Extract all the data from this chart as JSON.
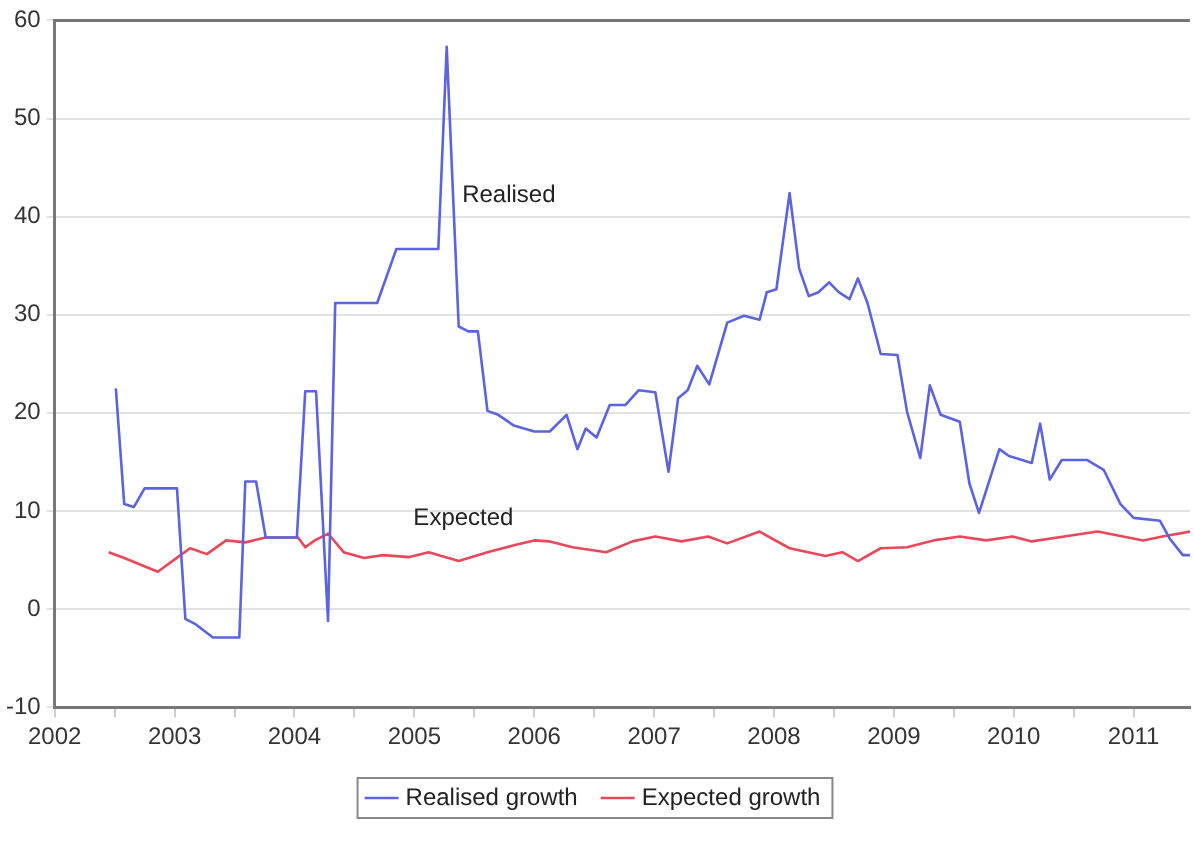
{
  "chart_data": {
    "type": "line",
    "xlim": [
      2002.5,
      2011.97
    ],
    "ylim": [
      -10,
      60
    ],
    "yticks": [
      -10,
      0,
      10,
      20,
      30,
      40,
      50,
      60
    ],
    "xticks": [
      {
        "value": 2002.5,
        "label": "2002"
      },
      {
        "value": 2003,
        "label": null
      },
      {
        "value": 2003.5,
        "label": "2003"
      },
      {
        "value": 2004,
        "label": null
      },
      {
        "value": 2004.5,
        "label": "2004"
      },
      {
        "value": 2005,
        "label": null
      },
      {
        "value": 2005.5,
        "label": "2005"
      },
      {
        "value": 2006,
        "label": null
      },
      {
        "value": 2006.5,
        "label": "2006"
      },
      {
        "value": 2007,
        "label": null
      },
      {
        "value": 2007.5,
        "label": "2007"
      },
      {
        "value": 2008,
        "label": null
      },
      {
        "value": 2008.5,
        "label": "2008"
      },
      {
        "value": 2009,
        "label": null
      },
      {
        "value": 2009.5,
        "label": "2009"
      },
      {
        "value": 2010,
        "label": null
      },
      {
        "value": 2010.5,
        "label": "2010"
      },
      {
        "value": 2011,
        "label": null
      },
      {
        "value": 2011.5,
        "label": "2011"
      }
    ],
    "grid": "y",
    "legend": "bottom",
    "marker": "none",
    "line_style": "solid",
    "annotations": [
      "Realised",
      "Expected"
    ],
    "series": [
      {
        "name": "Realised growth",
        "color": "#5b63e0",
        "x": [
          2003.01,
          2003.08,
          2003.16,
          2003.25,
          2003.52,
          2003.59,
          2003.67,
          2003.82,
          2004.04,
          2004.09,
          2004.18,
          2004.26,
          2004.52,
          2004.59,
          2004.68,
          2004.78,
          2004.84,
          2005.19,
          2005.35,
          2005.7,
          2005.77,
          2005.87,
          2005.95,
          2006.03,
          2006.11,
          2006.2,
          2006.33,
          2006.5,
          2006.63,
          2006.77,
          2006.86,
          2006.93,
          2007.02,
          2007.13,
          2007.26,
          2007.37,
          2007.51,
          2007.62,
          2007.7,
          2007.78,
          2007.86,
          2007.96,
          2008.11,
          2008.25,
          2008.38,
          2008.44,
          2008.52,
          2008.63,
          2008.71,
          2008.79,
          2008.87,
          2008.96,
          2009.04,
          2009.13,
          2009.2,
          2009.28,
          2009.39,
          2009.53,
          2009.61,
          2009.72,
          2009.8,
          2009.89,
          2010.05,
          2010.13,
          2010.21,
          2010.38,
          2010.46,
          2010.65,
          2010.72,
          2010.8,
          2010.9,
          2011.11,
          2011.25,
          2011.39,
          2011.5,
          2011.72,
          2011.8,
          2011.91,
          2011.97
        ],
        "values": [
          22.5,
          10.7,
          10.4,
          12.3,
          12.3,
          -1,
          -1.5,
          -2.9,
          -2.9,
          13,
          13,
          7.3,
          7.3,
          22.2,
          22.2,
          -1.2,
          31.2,
          31.2,
          36.7,
          36.7,
          57.3,
          28.8,
          28.3,
          28.3,
          20.2,
          19.8,
          18.7,
          18.1,
          18.1,
          19.8,
          16.3,
          18.4,
          17.5,
          20.8,
          20.8,
          22.3,
          22.1,
          14,
          21.5,
          22.3,
          24.8,
          22.9,
          29.2,
          29.9,
          29.5,
          32.3,
          32.6,
          42.4,
          34.7,
          31.9,
          32.3,
          33.3,
          32.3,
          31.6,
          33.7,
          31.2,
          26,
          25.9,
          20.1,
          15.4,
          22.8,
          19.8,
          19.1,
          12.8,
          9.8,
          16.3,
          15.6,
          14.9,
          18.9,
          13.2,
          15.2,
          15.2,
          14.2,
          10.7,
          9.3,
          9,
          7.2,
          5.5,
          5.5
        ]
      },
      {
        "name": "Expected growth",
        "color": "#e8485a",
        "x": [
          2002.95,
          2003.08,
          2003.36,
          2003.55,
          2003.63,
          2003.77,
          2003.93,
          2004.09,
          2004.26,
          2004.53,
          2004.59,
          2004.67,
          2004.78,
          2004.91,
          2005.08,
          2005.24,
          2005.46,
          2005.62,
          2005.87,
          2006.11,
          2006.33,
          2006.5,
          2006.63,
          2006.82,
          2007.1,
          2007.32,
          2007.51,
          2007.73,
          2007.95,
          2008.11,
          2008.38,
          2008.63,
          2008.93,
          2009.07,
          2009.2,
          2009.39,
          2009.61,
          2009.83,
          2010.05,
          2010.27,
          2010.49,
          2010.65,
          2010.92,
          2011.2,
          2011.58,
          2011.74,
          2011.97
        ],
        "values": [
          5.8,
          5.2,
          3.8,
          5.5,
          6.2,
          5.6,
          7,
          6.8,
          7.3,
          7.3,
          6.3,
          7,
          7.7,
          5.8,
          5.2,
          5.5,
          5.3,
          5.8,
          4.9,
          5.8,
          6.5,
          7,
          6.9,
          6.3,
          5.8,
          6.9,
          7.4,
          6.9,
          7.4,
          6.7,
          7.9,
          6.2,
          5.4,
          5.8,
          4.9,
          6.2,
          6.3,
          7,
          7.4,
          7,
          7.4,
          6.9,
          7.4,
          7.9,
          7,
          7.4,
          7.9
        ]
      }
    ]
  }
}
